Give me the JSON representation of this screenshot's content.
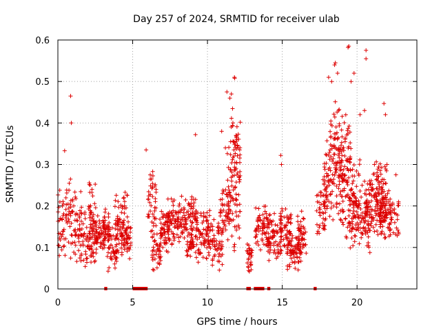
{
  "chart_data": {
    "type": "scatter",
    "title": "Day 257 of 2024, SRMTID for receiver ulab",
    "xlabel": "GPS time / hours",
    "ylabel": "SRMTID / TECUs",
    "xlim": [
      0,
      24
    ],
    "ylim": [
      0,
      0.6
    ],
    "x_ticks": [
      0,
      5,
      10,
      15,
      20
    ],
    "y_ticks": [
      0,
      0.1,
      0.2,
      0.3,
      0.4,
      0.5,
      0.6
    ],
    "x_tick_labels": [
      "0",
      "5",
      "10",
      "15",
      "20"
    ],
    "y_tick_labels": [
      "0",
      "0.1",
      "0.2",
      "0.3",
      "0.4",
      "0.5",
      "0.6"
    ],
    "grid": true,
    "marker": "+",
    "color": "#dd0000",
    "series": [
      {
        "name": "SRMTID",
        "segments": [
          {
            "x": [
              0.0,
              1.0
            ],
            "y": [
              0.06,
              0.3
            ]
          },
          {
            "x": [
              1.0,
              1.6
            ],
            "y": [
              0.05,
              0.25
            ]
          },
          {
            "x": [
              1.5,
              2.6
            ],
            "y": [
              0.04,
              0.2
            ]
          },
          {
            "x": [
              2.0,
              2.5
            ],
            "y": [
              0.06,
              0.29
            ]
          },
          {
            "x": [
              2.5,
              3.2
            ],
            "y": [
              0.08,
              0.18
            ]
          },
          {
            "x": [
              3.0,
              3.5
            ],
            "y": [
              0.1,
              0.2
            ]
          },
          {
            "x": [
              3.3,
              4.0
            ],
            "y": [
              0.03,
              0.15
            ]
          },
          {
            "x": [
              3.8,
              4.7
            ],
            "y": [
              0.08,
              0.25
            ]
          },
          {
            "x": [
              4.2,
              4.9
            ],
            "y": [
              0.07,
              0.17
            ]
          },
          {
            "x": [
              6.0,
              6.6
            ],
            "y": [
              0.12,
              0.3
            ]
          },
          {
            "x": [
              6.3,
              6.9
            ],
            "y": [
              0.04,
              0.15
            ]
          },
          {
            "x": [
              6.8,
              7.6
            ],
            "y": [
              0.08,
              0.2
            ]
          },
          {
            "x": [
              7.2,
              8.5
            ],
            "y": [
              0.1,
              0.23
            ]
          },
          {
            "x": [
              8.5,
              9.3
            ],
            "y": [
              0.12,
              0.23
            ]
          },
          {
            "x": [
              8.6,
              9.1
            ],
            "y": [
              0.07,
              0.15
            ]
          },
          {
            "x": [
              9.2,
              10.2
            ],
            "y": [
              0.06,
              0.2
            ]
          },
          {
            "x": [
              10.0,
              11.0
            ],
            "y": [
              0.04,
              0.18
            ]
          },
          {
            "x": [
              10.8,
              11.5
            ],
            "y": [
              0.1,
              0.27
            ]
          },
          {
            "x": [
              11.3,
              12.2
            ],
            "y": [
              0.06,
              0.38
            ]
          },
          {
            "x": [
              11.5,
              12.2
            ],
            "y": [
              0.2,
              0.45
            ]
          },
          {
            "x": [
              12.6,
              13.0
            ],
            "y": [
              0.03,
              0.12
            ]
          },
          {
            "x": [
              13.2,
              14.2
            ],
            "y": [
              0.08,
              0.21
            ]
          },
          {
            "x": [
              14.0,
              15.0
            ],
            "y": [
              0.06,
              0.19
            ]
          },
          {
            "x": [
              14.8,
              15.6
            ],
            "y": [
              0.09,
              0.2
            ]
          },
          {
            "x": [
              15.3,
              16.3
            ],
            "y": [
              0.03,
              0.15
            ]
          },
          {
            "x": [
              16.0,
              16.6
            ],
            "y": [
              0.08,
              0.2
            ]
          },
          {
            "x": [
              17.3,
              18.0
            ],
            "y": [
              0.12,
              0.27
            ]
          },
          {
            "x": [
              17.8,
              19.0
            ],
            "y": [
              0.14,
              0.4
            ]
          },
          {
            "x": [
              18.2,
              19.6
            ],
            "y": [
              0.2,
              0.47
            ]
          },
          {
            "x": [
              19.0,
              20.2
            ],
            "y": [
              0.1,
              0.34
            ]
          },
          {
            "x": [
              19.5,
              21.0
            ],
            "y": [
              0.08,
              0.26
            ]
          },
          {
            "x": [
              20.5,
              21.8
            ],
            "y": [
              0.1,
              0.3
            ]
          },
          {
            "x": [
              21.5,
              22.8
            ],
            "y": [
              0.11,
              0.25
            ]
          },
          {
            "x": [
              21.0,
              22.0
            ],
            "y": [
              0.12,
              0.31
            ]
          }
        ],
        "outliers": [
          {
            "x": 0.85,
            "y": 0.465
          },
          {
            "x": 0.9,
            "y": 0.4
          },
          {
            "x": 0.45,
            "y": 0.333
          },
          {
            "x": 5.9,
            "y": 0.335
          },
          {
            "x": 9.2,
            "y": 0.372
          },
          {
            "x": 10.95,
            "y": 0.38
          },
          {
            "x": 11.3,
            "y": 0.475
          },
          {
            "x": 11.5,
            "y": 0.46
          },
          {
            "x": 11.6,
            "y": 0.47
          },
          {
            "x": 11.8,
            "y": 0.51
          },
          {
            "x": 11.82,
            "y": 0.508
          },
          {
            "x": 11.7,
            "y": 0.4
          },
          {
            "x": 11.2,
            "y": 0.34
          },
          {
            "x": 14.9,
            "y": 0.322
          },
          {
            "x": 14.95,
            "y": 0.3
          },
          {
            "x": 18.1,
            "y": 0.51
          },
          {
            "x": 18.3,
            "y": 0.5
          },
          {
            "x": 18.5,
            "y": 0.54
          },
          {
            "x": 18.55,
            "y": 0.545
          },
          {
            "x": 18.7,
            "y": 0.52
          },
          {
            "x": 19.4,
            "y": 0.582
          },
          {
            "x": 19.45,
            "y": 0.585
          },
          {
            "x": 19.6,
            "y": 0.5
          },
          {
            "x": 19.8,
            "y": 0.52
          },
          {
            "x": 20.6,
            "y": 0.575
          },
          {
            "x": 20.6,
            "y": 0.555
          },
          {
            "x": 20.5,
            "y": 0.43
          },
          {
            "x": 20.2,
            "y": 0.42
          },
          {
            "x": 21.8,
            "y": 0.447
          },
          {
            "x": 21.9,
            "y": 0.42
          },
          {
            "x": 22.0,
            "y": 0.3
          },
          {
            "x": 22.6,
            "y": 0.275
          }
        ]
      }
    ],
    "zero_segments": [
      [
        3.1,
        3.3
      ],
      [
        5.0,
        6.0
      ],
      [
        12.6,
        12.9
      ],
      [
        13.1,
        13.8
      ],
      [
        14.0,
        14.2
      ],
      [
        17.1,
        17.3
      ]
    ]
  }
}
